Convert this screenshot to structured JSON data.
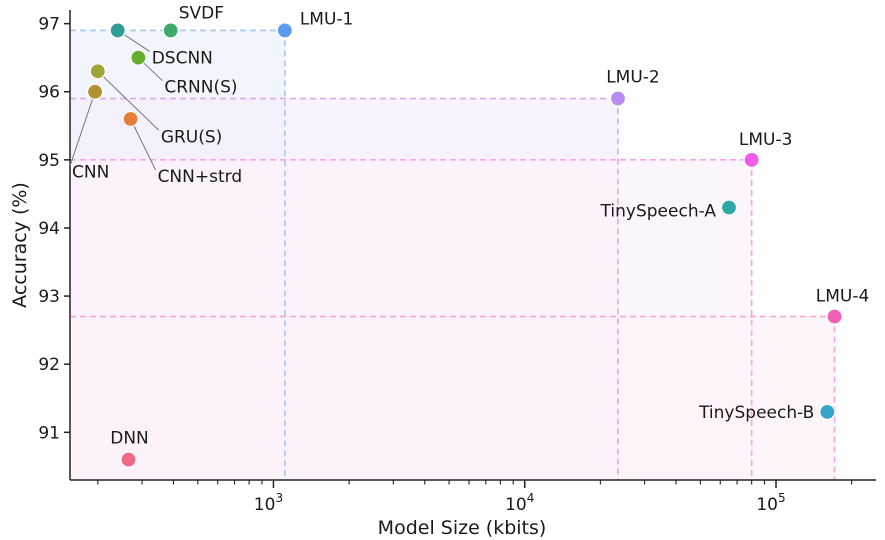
{
  "chart_data": {
    "type": "scatter",
    "xlabel": "Model Size (kbits)",
    "ylabel": "Accuracy (%)",
    "x_scale": "log",
    "xlim": [
      155,
      250000
    ],
    "ylim": [
      90.3,
      97.2
    ],
    "x_tick_labels": [
      "10^3",
      "10^4",
      "10^5"
    ],
    "y_ticks": [
      91,
      92,
      93,
      94,
      95,
      96,
      97
    ],
    "grid": false,
    "points": [
      {
        "label": "SVDF",
        "x": 390,
        "y": 96.9,
        "color": "#3dab6e"
      },
      {
        "label": "LMU-1",
        "x": 1110,
        "y": 96.9,
        "color": "#5b9bef"
      },
      {
        "label": "DSCNN",
        "x": 240,
        "y": 96.9,
        "color": "#2f9e95"
      },
      {
        "label": "CRNN(S)",
        "x": 290,
        "y": 96.5,
        "color": "#65ad2c"
      },
      {
        "label": "GRU(S)",
        "x": 200,
        "y": 96.3,
        "color": "#9fa538"
      },
      {
        "label": "CNN",
        "x": 195,
        "y": 96.0,
        "color": "#b39032"
      },
      {
        "label": "CNN+strd",
        "x": 270,
        "y": 95.6,
        "color": "#e57e3a"
      },
      {
        "label": "LMU-2",
        "x": 23500,
        "y": 95.9,
        "color": "#b98af0"
      },
      {
        "label": "LMU-3",
        "x": 80000,
        "y": 95.0,
        "color": "#ee5ce8"
      },
      {
        "label": "TinySpeech-A",
        "x": 65000,
        "y": 94.3,
        "color": "#30a8a4"
      },
      {
        "label": "LMU-4",
        "x": 171000,
        "y": 92.7,
        "color": "#ee5fb5"
      },
      {
        "label": "TinySpeech-B",
        "x": 160000,
        "y": 91.3,
        "color": "#34a5cb"
      },
      {
        "label": "DNN",
        "x": 265,
        "y": 90.6,
        "color": "#ee6a85"
      }
    ],
    "reference_boxes": [
      {
        "model": "LMU-1",
        "color": "#a9c8f0",
        "fill": "#edf3fb"
      },
      {
        "model": "LMU-2",
        "color": "#dfa8ef",
        "fill": "#f6effc"
      },
      {
        "model": "LMU-3",
        "color": "#f6a2ee",
        "fill": "#fcf1fb"
      },
      {
        "model": "LMU-4",
        "color": "#f6a6d6",
        "fill": "#fdf2f8"
      }
    ]
  }
}
